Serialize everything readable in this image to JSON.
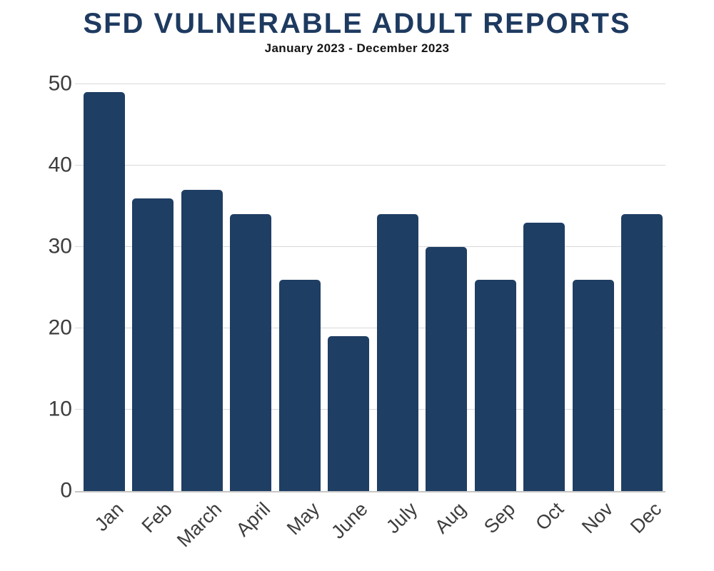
{
  "header": {
    "title": "SFD VULNERABLE ADULT REPORTS",
    "subtitle": "January 2023 - December 2023"
  },
  "chart_data": {
    "type": "bar",
    "title": "SFD VULNERABLE ADULT REPORTS",
    "subtitle": "January 2023 - December 2023",
    "categories": [
      "Jan",
      "Feb",
      "March",
      "April",
      "May",
      "June",
      "July",
      "Aug",
      "Sep",
      "Oct",
      "Nov",
      "Dec"
    ],
    "values": [
      49,
      36,
      37,
      34,
      26,
      19,
      34,
      30,
      26,
      33,
      26,
      34
    ],
    "xlabel": "",
    "ylabel": "",
    "ylim": [
      0,
      50
    ],
    "yticks": [
      0,
      10,
      20,
      30,
      40,
      50
    ],
    "grid": true,
    "legend": false,
    "x_tick_rotation_deg": 45,
    "colors": {
      "bar": "#1f3e63",
      "title": "#1e3a60",
      "subtitle": "#141414",
      "gridline": "#d9d9d9",
      "axis_line": "#c6c6c6",
      "tick_label": "#3d3d3d",
      "background": "#ffffff"
    }
  }
}
